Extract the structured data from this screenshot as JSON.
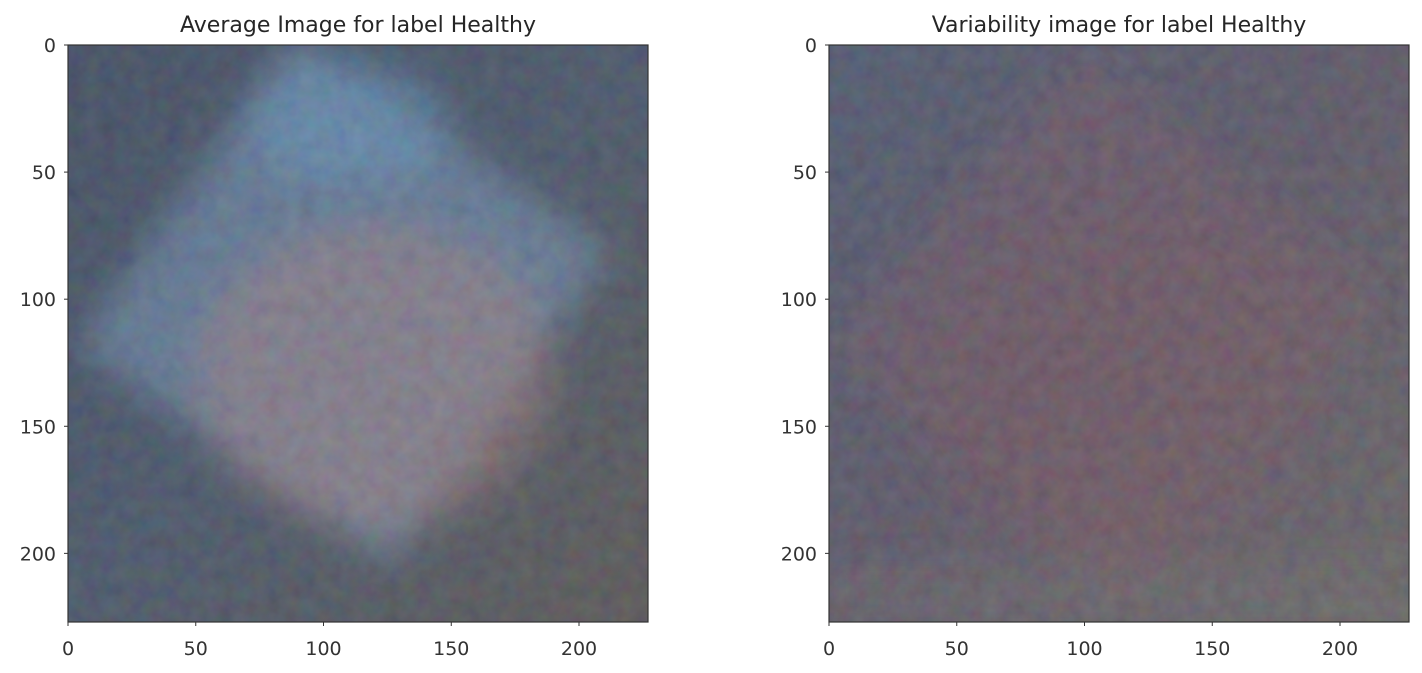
{
  "chart_data": [
    {
      "type": "heatmap",
      "title": "Average Image for label Healthy",
      "xlim": [
        0,
        227
      ],
      "ylim": [
        227,
        0
      ],
      "xticks": [
        0,
        50,
        100,
        150,
        200
      ],
      "yticks": [
        0,
        50,
        100,
        150,
        200
      ],
      "grid": false,
      "style": {
        "background": "#24384d",
        "corner_colors": [
          "#1a2e45",
          "#0f2540",
          "#3a2a22",
          "#3a3a35"
        ],
        "overlays": [
          {
            "shape": "rotated-square",
            "cx": 108,
            "cy": 100,
            "size": 150,
            "angle_deg": 35,
            "color": "#6a9cc8",
            "opacity": 0.45
          },
          {
            "shape": "ellipse",
            "cx": 120,
            "cy": 130,
            "rx": 70,
            "ry": 60,
            "color": "#a87066",
            "opacity": 0.4
          },
          {
            "shape": "ellipse",
            "cx": 110,
            "cy": 30,
            "rx": 40,
            "ry": 25,
            "color": "#4a9bd0",
            "opacity": 0.35
          }
        ]
      }
    },
    {
      "type": "heatmap",
      "title": "Variability image for label Healthy",
      "xlim": [
        0,
        227
      ],
      "ylim": [
        227,
        0
      ],
      "xticks": [
        0,
        50,
        100,
        150,
        200
      ],
      "yticks": [
        0,
        50,
        100,
        150,
        200
      ],
      "grid": false,
      "style": {
        "background": "#3d3a4a",
        "corner_colors": [
          "#2c3c55",
          "#2a3a58",
          "#4a4a40",
          "#4a4a48"
        ],
        "overlays": [
          {
            "shape": "rotated-square",
            "cx": 108,
            "cy": 110,
            "size": 155,
            "angle_deg": 40,
            "color": "#6b3a48",
            "opacity": 0.35
          },
          {
            "shape": "ellipse",
            "cx": 115,
            "cy": 140,
            "rx": 80,
            "ry": 70,
            "color": "#5a3a45",
            "opacity": 0.3
          },
          {
            "shape": "band",
            "y0": 205,
            "y1": 227,
            "color": "#5a5a55",
            "opacity": 0.35
          }
        ]
      }
    }
  ]
}
